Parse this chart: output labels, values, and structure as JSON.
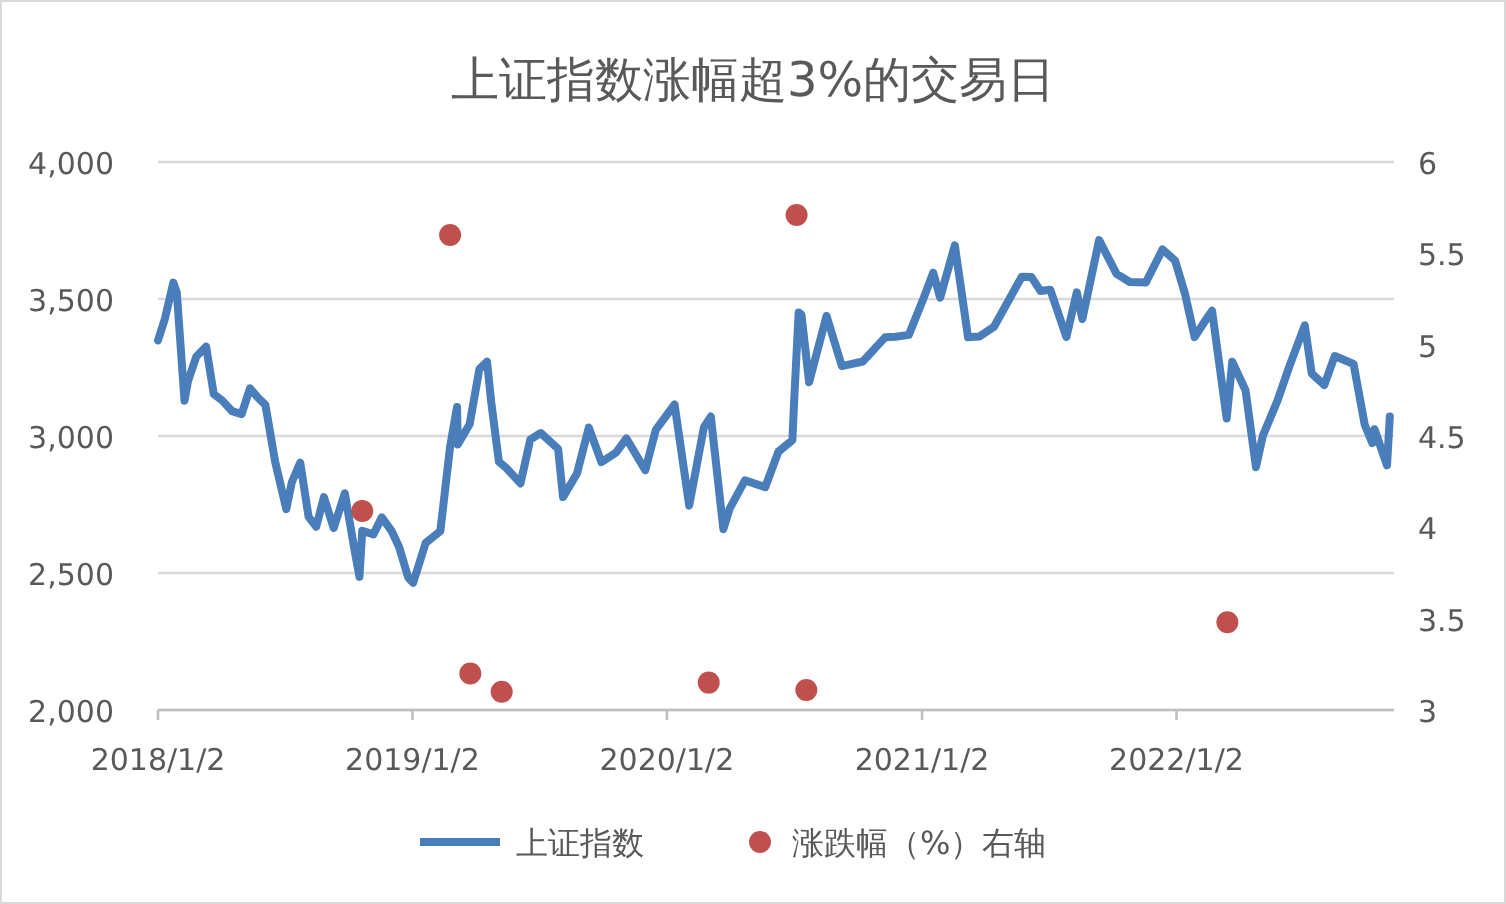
{
  "chart_data": {
    "type": "line",
    "title": "上证指数涨幅超3%的交易日",
    "xlim": [
      "2018-01-02",
      "2022-11-10"
    ],
    "xticks": [
      {
        "value": "2018-01-02",
        "label": "2018/1/2"
      },
      {
        "value": "2019-01-02",
        "label": "2019/1/2"
      },
      {
        "value": "2020-01-02",
        "label": "2020/1/2"
      },
      {
        "value": "2021-01-02",
        "label": "2021/1/2"
      },
      {
        "value": "2022-01-02",
        "label": "2022/1/2"
      }
    ],
    "ylim": [
      2000,
      4000
    ],
    "yticks": [
      {
        "value": 2000,
        "label": "2,000"
      },
      {
        "value": 2500,
        "label": "2,500"
      },
      {
        "value": 3000,
        "label": "3,000"
      },
      {
        "value": 3500,
        "label": "3,500"
      },
      {
        "value": 4000,
        "label": "4,000"
      }
    ],
    "y2lim": [
      3,
      6
    ],
    "y2ticks": [
      3,
      3.5,
      4,
      4.5,
      5,
      5.5,
      6
    ],
    "grid": "y",
    "legend": "bottom",
    "series": [
      {
        "name": "上证指数",
        "color": "#4a7ebb",
        "x": [
          "2018-01-02",
          "2018-01-12",
          "2018-01-24",
          "2018-01-29",
          "2018-02-09",
          "2018-02-14",
          "2018-02-26",
          "2018-03-12",
          "2018-03-23",
          "2018-04-04",
          "2018-04-18",
          "2018-05-02",
          "2018-05-14",
          "2018-05-25",
          "2018-06-05",
          "2018-06-19",
          "2018-07-05",
          "2018-07-13",
          "2018-07-25",
          "2018-08-06",
          "2018-08-17",
          "2018-08-28",
          "2018-09-11",
          "2018-09-27",
          "2018-10-11",
          "2018-10-18",
          "2018-10-22",
          "2018-11-07",
          "2018-11-19",
          "2018-12-03",
          "2018-12-14",
          "2018-12-27",
          "2019-01-03",
          "2019-01-21",
          "2019-02-11",
          "2019-02-25",
          "2019-03-07",
          "2019-03-08",
          "2019-03-25",
          "2019-04-08",
          "2019-04-19",
          "2019-04-25",
          "2019-05-06",
          "2019-05-17",
          "2019-06-06",
          "2019-06-20",
          "2019-07-05",
          "2019-07-30",
          "2019-08-06",
          "2019-08-26",
          "2019-09-12",
          "2019-09-30",
          "2019-10-21",
          "2019-11-05",
          "2019-12-02",
          "2019-12-17",
          "2020-01-13",
          "2020-02-03",
          "2020-02-24",
          "2020-03-05",
          "2020-03-23",
          "2020-04-01",
          "2020-04-23",
          "2020-05-22",
          "2020-06-10",
          "2020-06-30",
          "2020-07-03",
          "2020-07-09",
          "2020-07-13",
          "2020-07-24",
          "2020-08-18",
          "2020-09-09",
          "2020-10-09",
          "2020-11-10",
          "2020-11-25",
          "2020-12-14",
          "2021-01-04",
          "2021-01-18",
          "2021-01-28",
          "2021-02-18",
          "2021-03-09",
          "2021-03-25",
          "2021-04-15",
          "2021-05-25",
          "2021-06-08",
          "2021-06-21",
          "2021-07-05",
          "2021-07-28",
          "2021-08-12",
          "2021-08-20",
          "2021-09-13",
          "2021-10-08",
          "2021-10-27",
          "2021-11-19",
          "2021-12-13",
          "2021-12-31",
          "2022-01-14",
          "2022-01-28",
          "2022-02-14",
          "2022-02-22",
          "2022-03-15",
          "2022-03-23",
          "2022-04-11",
          "2022-04-26",
          "2022-05-06",
          "2022-05-27",
          "2022-06-13",
          "2022-07-05",
          "2022-07-15",
          "2022-08-02",
          "2022-08-17",
          "2022-09-13",
          "2022-09-29",
          "2022-10-10",
          "2022-10-13",
          "2022-10-31",
          "2022-11-04"
        ],
        "values": [
          3349,
          3429,
          3560,
          3523,
          3129,
          3200,
          3290,
          3326,
          3153,
          3130,
          3091,
          3080,
          3174,
          3141,
          3114,
          2907,
          2733,
          2831,
          2903,
          2705,
          2669,
          2777,
          2664,
          2791,
          2583,
          2486,
          2654,
          2641,
          2703,
          2654,
          2594,
          2483,
          2464,
          2610,
          2653,
          2961,
          3106,
          2969,
          3043,
          3244,
          3271,
          3124,
          2906,
          2882,
          2827,
          2987,
          3011,
          2953,
          2777,
          2863,
          3031,
          2905,
          2939,
          2991,
          2875,
          3022,
          3115,
          2746,
          3031,
          3071,
          2660,
          2735,
          2838,
          2813,
          2943,
          2985,
          3152,
          3451,
          3443,
          3196,
          3438,
          3255,
          3272,
          3360,
          3362,
          3369,
          3502,
          3596,
          3505,
          3696,
          3360,
          3363,
          3398,
          3581,
          3580,
          3529,
          3534,
          3361,
          3524,
          3427,
          3715,
          3592,
          3562,
          3560,
          3681,
          3640,
          3521,
          3361,
          3428,
          3457,
          3064,
          3271,
          3167,
          2886,
          3002,
          3130,
          3255,
          3404,
          3228,
          3186,
          3292,
          3263,
          3041,
          2974,
          3025,
          2893,
          3071
        ]
      },
      {
        "name": "涨跌幅（%）右轴",
        "type": "scatter",
        "axis": "y2",
        "marker": "circle",
        "color": "#c0504d",
        "x": [
          "2018-10-22",
          "2019-02-25",
          "2019-03-26",
          "2019-05-10",
          "2020-03-02",
          "2020-07-06",
          "2020-07-20",
          "2022-03-16"
        ],
        "values": [
          4.09,
          5.6,
          3.2,
          3.1,
          3.15,
          5.71,
          3.11,
          3.48
        ]
      }
    ]
  }
}
